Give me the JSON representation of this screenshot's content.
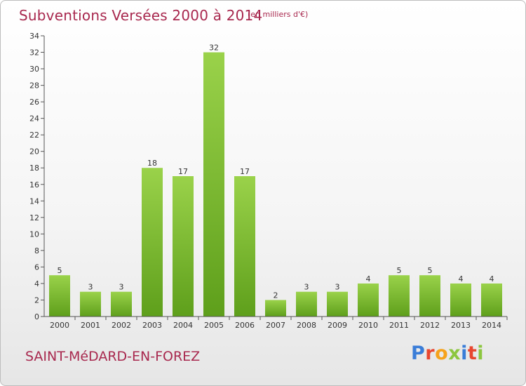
{
  "title": "Subventions Versées 2000 à 2014",
  "unit_note": "(en milliers d'€)",
  "commune": "SAINT-MéDARD-EN-FOREZ",
  "logo": {
    "text": "Proxiti",
    "colors": [
      "#3a7dd8",
      "#e8462f",
      "#f6a21b",
      "#8cc63f",
      "#3a7dd8",
      "#e8462f",
      "#8cc63f"
    ]
  },
  "colors": {
    "bar_top": "#9ad24a",
    "bar_bottom": "#5e9f1b",
    "axis": "#555555",
    "grid": "#cccccc",
    "accent": "#a8284e"
  },
  "chart_data": {
    "type": "bar",
    "title": "Subventions Versées 2000 à 2014",
    "subtitle": "(en milliers d'€)",
    "xlabel": "",
    "ylabel": "",
    "ylim": [
      0,
      34
    ],
    "yticks": [
      0,
      2,
      4,
      6,
      8,
      10,
      12,
      14,
      16,
      18,
      20,
      22,
      24,
      26,
      28,
      30,
      32,
      34
    ],
    "grid": false,
    "categories": [
      "2000",
      "2001",
      "2002",
      "2003",
      "2004",
      "2005",
      "2006",
      "2007",
      "2008",
      "2009",
      "2010",
      "2011",
      "2012",
      "2013",
      "2014"
    ],
    "values": [
      5,
      3,
      3,
      18,
      17,
      32,
      17,
      2,
      3,
      3,
      4,
      5,
      5,
      4,
      4
    ]
  }
}
